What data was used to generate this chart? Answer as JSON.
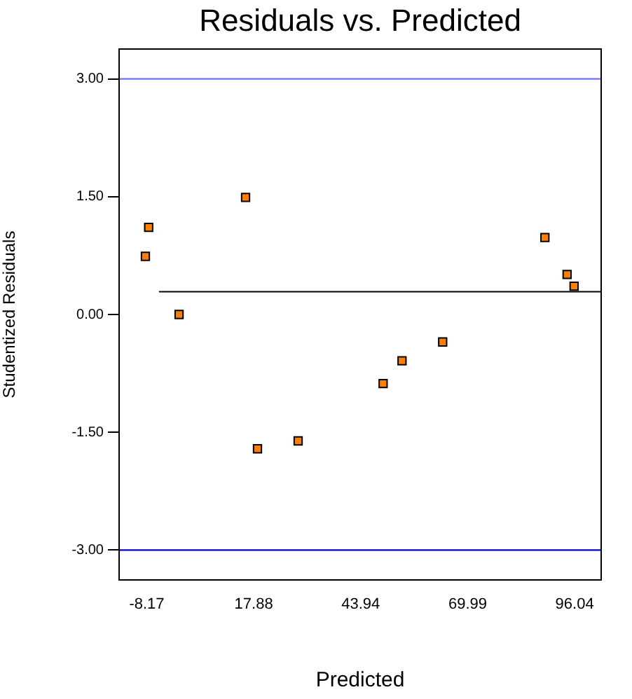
{
  "chart_data": {
    "type": "scatter",
    "title": "Residuals vs. Predicted",
    "xlabel": "Predicted",
    "ylabel": "Studentized Residuals",
    "xlim": [
      -14.9,
      102.5
    ],
    "xticks": [
      -8.17,
      17.88,
      43.94,
      69.99,
      96.04
    ],
    "ylim": [
      -3.38,
      3.38
    ],
    "yticks": [
      {
        "value": -3,
        "label": "-3.00"
      },
      {
        "value": -1.5,
        "label": "-1.50"
      },
      {
        "value": 0,
        "label": "0.00"
      },
      {
        "value": 1.5,
        "label": "1.50"
      },
      {
        "value": 3,
        "label": "3.00"
      }
    ],
    "grid": false,
    "legend": false,
    "series": [
      {
        "marker": "square",
        "color": "#ff8000",
        "x": [
          -8.5,
          -7.7,
          -0.3,
          15.9,
          18.8,
          28.7,
          49.4,
          54.0,
          63.9,
          88.8,
          94.2,
          95.9
        ],
        "values": [
          0.74,
          1.11,
          0,
          1.49,
          -1.71,
          -1.61,
          -0.88,
          -0.59,
          -0.35,
          0.98,
          0.51,
          0.36
        ]
      },
      {
        "type": "line",
        "marker": "none",
        "color": "#000000",
        "x": [
          -5.2,
          102.5
        ],
        "values": [
          0.29,
          0.29
        ]
      }
    ],
    "ref_lines": [
      {
        "axis": "y",
        "value": 3,
        "color": "#7070ff"
      },
      {
        "axis": "y",
        "value": -3,
        "color": "#0000cc"
      }
    ]
  }
}
